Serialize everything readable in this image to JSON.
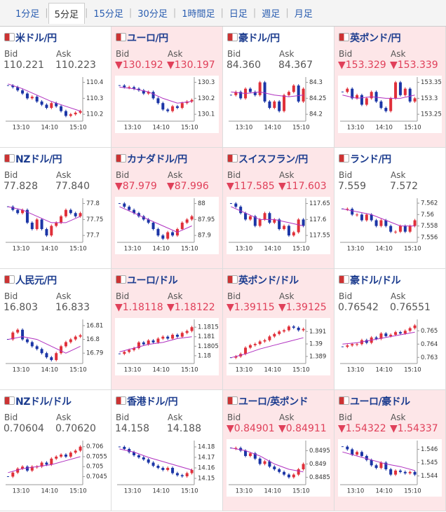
{
  "tabs": [
    "1分足",
    "5分足",
    "15分足",
    "30分足",
    "1時間足",
    "日足",
    "週足",
    "月足"
  ],
  "active_tab": 1,
  "tiles": [
    {
      "name": "米ドル/円",
      "bid_label": "Bid",
      "ask_label": "Ask",
      "bid": "110.221",
      "ask": "110.223",
      "down": false,
      "chart": {
        "ylim": [
          110.17,
          110.42
        ],
        "yticks": [
          110.4,
          110.3,
          110.2
        ],
        "xticks": [
          "13:10",
          "14:10",
          "15:10"
        ],
        "values": [
          110.38,
          110.37,
          110.35,
          110.33,
          110.3,
          110.31,
          110.28,
          110.26,
          110.24,
          110.27,
          110.25,
          110.22,
          110.19,
          110.2,
          110.21,
          110.22
        ],
        "ma": [
          110.39,
          110.36,
          110.32,
          110.28,
          110.25,
          110.22
        ]
      }
    },
    {
      "name": "ユーロ/円",
      "bid_label": "Bid",
      "ask_label": "Ask",
      "bid": "▼130.192",
      "ask": "▼130.197",
      "down": true,
      "chart": {
        "ylim": [
          130.07,
          130.32
        ],
        "yticks": [
          130.3,
          130.2,
          130.1
        ],
        "xticks": [
          "13:10",
          "14:10",
          "15:10"
        ],
        "values": [
          130.28,
          130.27,
          130.27,
          130.26,
          130.25,
          130.23,
          130.24,
          130.2,
          130.17,
          130.13,
          130.12,
          130.15,
          130.14,
          130.17,
          130.18,
          130.19
        ],
        "ma": [
          130.27,
          130.26,
          130.24,
          130.2,
          130.17,
          130.18
        ]
      }
    },
    {
      "name": "豪ドル/円",
      "bid_label": "Bid",
      "ask_label": "Ask",
      "bid": "84.360",
      "ask": "84.367",
      "down": false,
      "chart": {
        "ylim": [
          84.185,
          84.31
        ],
        "yticks": [
          84.3,
          84.25,
          84.2
        ],
        "xticks": [
          "13:10",
          "14:10",
          "15:10"
        ],
        "values": [
          84.26,
          84.27,
          84.25,
          84.28,
          84.27,
          84.26,
          84.3,
          84.24,
          84.22,
          84.24,
          84.21,
          84.26,
          84.27,
          84.29,
          84.24,
          84.28
        ],
        "ma": [
          84.27,
          84.265,
          84.27,
          84.26,
          84.255,
          84.26
        ]
      }
    },
    {
      "name": "英ポンド/円",
      "bid_label": "Bid",
      "ask_label": "Ask",
      "bid": "▼153.329",
      "ask": "▼153.339",
      "down": true,
      "chart": {
        "ylim": [
          153.235,
          153.36
        ],
        "yticks": [
          153.35,
          153.3,
          153.25
        ],
        "xticks": [
          "13:10",
          "14:10",
          "15:10"
        ],
        "values": [
          153.32,
          153.33,
          153.3,
          153.31,
          153.28,
          153.3,
          153.32,
          153.29,
          153.27,
          153.26,
          153.3,
          153.35,
          153.31,
          153.33,
          153.29,
          153.3
        ],
        "ma": [
          153.31,
          153.3,
          153.305,
          153.3,
          153.3,
          153.31
        ]
      }
    },
    {
      "name": "NZドル/円",
      "bid_label": "Bid",
      "ask_label": "Ask",
      "bid": "77.828",
      "ask": "77.840",
      "down": false,
      "chart": {
        "ylim": [
          77.685,
          77.81
        ],
        "yticks": [
          77.8,
          77.75,
          77.7
        ],
        "xticks": [
          "13:10",
          "14:10",
          "15:10"
        ],
        "values": [
          77.79,
          77.78,
          77.77,
          77.78,
          77.74,
          77.72,
          77.75,
          77.72,
          77.7,
          77.73,
          77.74,
          77.76,
          77.78,
          77.77,
          77.76,
          77.77
        ],
        "ma": [
          77.79,
          77.78,
          77.76,
          77.74,
          77.74,
          77.76
        ]
      }
    },
    {
      "name": "カナダドル/円",
      "bid_label": "Bid",
      "ask_label": "Ask",
      "bid": "▼87.979",
      "ask": "▼87.996",
      "down": true,
      "chart": {
        "ylim": [
          87.885,
          88.01
        ],
        "yticks": [
          88,
          87.95,
          87.9
        ],
        "xticks": [
          "13:10",
          "14:10",
          "15:10"
        ],
        "values": [
          88.0,
          87.99,
          87.98,
          87.97,
          87.96,
          87.95,
          87.94,
          87.92,
          87.9,
          87.89,
          87.91,
          87.9,
          87.92,
          87.94,
          87.95,
          87.96
        ],
        "ma": [
          87.99,
          87.97,
          87.95,
          87.93,
          87.91,
          87.93
        ]
      }
    },
    {
      "name": "スイスフラン/円",
      "bid_label": "Bid",
      "ask_label": "Ask",
      "bid": "▼117.585",
      "ask": "▼117.603",
      "down": true,
      "chart": {
        "ylim": [
          117.535,
          117.66
        ],
        "yticks": [
          117.65,
          117.6,
          117.55
        ],
        "xticks": [
          "13:10",
          "14:10",
          "15:10"
        ],
        "values": [
          117.65,
          117.64,
          117.62,
          117.6,
          117.61,
          117.58,
          117.6,
          117.62,
          117.59,
          117.6,
          117.57,
          117.58,
          117.55,
          117.56,
          117.6,
          117.58
        ],
        "ma": [
          117.64,
          117.62,
          117.6,
          117.6,
          117.59,
          117.58
        ]
      }
    },
    {
      "name": "ランド/円",
      "bid_label": "Bid",
      "ask_label": "Ask",
      "bid": "7.559",
      "ask": "7.572",
      "down": false,
      "chart": {
        "ylim": [
          7.5555,
          7.5625
        ],
        "yticks": [
          7.562,
          7.56,
          7.558,
          7.556
        ],
        "xticks": [
          "13:10",
          "14:10",
          "15:10"
        ],
        "values": [
          7.561,
          7.561,
          7.56,
          7.56,
          7.559,
          7.56,
          7.559,
          7.558,
          7.559,
          7.558,
          7.557,
          7.557,
          7.558,
          7.557,
          7.558,
          7.559
        ],
        "ma": [
          7.561,
          7.5605,
          7.56,
          7.559,
          7.558,
          7.558
        ]
      }
    },
    {
      "name": "人民元/円",
      "bid_label": "Bid",
      "ask_label": "Ask",
      "bid": "16.803",
      "ask": "16.833",
      "down": false,
      "chart": {
        "ylim": [
          16.784,
          16.813
        ],
        "yticks": [
          16.81,
          16.8,
          16.79
        ],
        "xticks": [
          "13:10",
          "14:10",
          "15:10"
        ],
        "values": [
          16.8,
          16.805,
          16.807,
          16.8,
          16.798,
          16.795,
          16.793,
          16.79,
          16.787,
          16.785,
          16.79,
          16.795,
          16.798,
          16.8,
          16.802,
          16.803
        ],
        "ma": [
          16.8,
          16.802,
          16.8,
          16.795,
          16.79,
          16.795
        ]
      }
    },
    {
      "name": "ユーロ/ドル",
      "bid_label": "Bid",
      "ask_label": "Ask",
      "bid": "▼1.18118",
      "ask": "▼1.18122",
      "down": true,
      "chart": {
        "ylim": [
          1.1797,
          1.1818
        ],
        "yticks": [
          1.1815,
          1.181,
          1.1805,
          1.18
        ],
        "xticks": [
          "13:10",
          "14:10",
          "15:10"
        ],
        "values": [
          1.1801,
          1.1802,
          1.1803,
          1.1804,
          1.1807,
          1.1806,
          1.1808,
          1.1807,
          1.1809,
          1.181,
          1.1809,
          1.1811,
          1.181,
          1.1812,
          1.1813,
          1.1815
        ],
        "ma": [
          1.1802,
          1.1804,
          1.1806,
          1.1807,
          1.1809,
          1.181
        ]
      }
    },
    {
      "name": "英ポンド/ドル",
      "bid_label": "Bid",
      "ask_label": "Ask",
      "bid": "▼1.39115",
      "ask": "▼1.39125",
      "down": true,
      "chart": {
        "ylim": [
          1.3886,
          1.3918
        ],
        "yticks": [
          1.391,
          1.39,
          1.389
        ],
        "xticks": [
          "13:10",
          "14:10",
          "15:10"
        ],
        "values": [
          1.3889,
          1.389,
          1.3892,
          1.3897,
          1.3899,
          1.39,
          1.3902,
          1.3903,
          1.3906,
          1.3908,
          1.391,
          1.3911,
          1.3914,
          1.3913,
          1.3911,
          1.3912
        ],
        "ma": [
          1.3889,
          1.3892,
          1.3896,
          1.3899,
          1.3902,
          1.3905
        ]
      }
    },
    {
      "name": "豪ドル/ドル",
      "bid_label": "Bid",
      "ask_label": "Ask",
      "bid": "0.76542",
      "ask": "0.76551",
      "down": false,
      "chart": {
        "ylim": [
          0.7627,
          0.7657
        ],
        "yticks": [
          0.765,
          0.764,
          0.763
        ],
        "xticks": [
          "13:10",
          "14:10",
          "15:10"
        ],
        "values": [
          0.7638,
          0.7639,
          0.764,
          0.764,
          0.7643,
          0.7641,
          0.7645,
          0.7644,
          0.7648,
          0.7646,
          0.7647,
          0.7649,
          0.7648,
          0.765,
          0.7652,
          0.7654
        ],
        "ma": [
          0.764,
          0.7641,
          0.7643,
          0.7645,
          0.7647,
          0.7649
        ]
      }
    },
    {
      "name": "NZドル/ドル",
      "bid_label": "Bid",
      "ask_label": "Ask",
      "bid": "0.70604",
      "ask": "0.70620",
      "down": false,
      "chart": {
        "ylim": [
          0.7042,
          0.7062
        ],
        "yticks": [
          0.706,
          0.7055,
          0.705,
          0.7045
        ],
        "xticks": [
          "13:10",
          "14:10",
          "15:10"
        ],
        "values": [
          0.7045,
          0.7047,
          0.7049,
          0.705,
          0.7048,
          0.705,
          0.705,
          0.7052,
          0.7051,
          0.7054,
          0.7055,
          0.7056,
          0.7055,
          0.7057,
          0.7058,
          0.706
        ],
        "ma": [
          0.7047,
          0.7049,
          0.705,
          0.7051,
          0.7053,
          0.7055
        ]
      }
    },
    {
      "name": "香港ドル/円",
      "bid_label": "Bid",
      "ask_label": "Ask",
      "bid": "14.158",
      "ask": "14.188",
      "down": false,
      "chart": {
        "ylim": [
          14.146,
          14.184
        ],
        "yticks": [
          14.18,
          14.17,
          14.16,
          14.15
        ],
        "xticks": [
          "13:10",
          "14:10",
          "15:10"
        ],
        "values": [
          14.18,
          14.178,
          14.175,
          14.172,
          14.17,
          14.168,
          14.165,
          14.162,
          14.16,
          14.158,
          14.16,
          14.155,
          14.153,
          14.152,
          14.155,
          14.158
        ],
        "ma": [
          14.178,
          14.175,
          14.17,
          14.166,
          14.162,
          14.158
        ]
      }
    },
    {
      "name": "ユーロ/英ポンド",
      "bid_label": "Bid",
      "ask_label": "Ask",
      "bid": "▼0.84901",
      "ask": "▼0.84911",
      "down": true,
      "chart": {
        "ylim": [
          0.8483,
          0.8498
        ],
        "yticks": [
          0.8495,
          0.849,
          0.8485
        ],
        "xticks": [
          "13:10",
          "14:10",
          "15:10"
        ],
        "values": [
          0.8496,
          0.8496,
          0.8495,
          0.8493,
          0.8494,
          0.8492,
          0.849,
          0.8491,
          0.8489,
          0.8488,
          0.8487,
          0.8486,
          0.8485,
          0.8486,
          0.8488,
          0.849
        ],
        "ma": [
          0.8496,
          0.8495,
          0.8493,
          0.849,
          0.8488,
          0.8487
        ]
      }
    },
    {
      "name": "ユーロ/豪ドル",
      "bid_label": "Bid",
      "ask_label": "Ask",
      "bid": "▼1.54322",
      "ask": "▼1.54337",
      "down": true,
      "chart": {
        "ylim": [
          1.5435,
          1.5465
        ],
        "yticks": [
          1.546,
          1.545,
          1.544
        ],
        "xticks": [
          "13:10",
          "14:10",
          "15:10"
        ],
        "values": [
          1.5462,
          1.546,
          1.5456,
          1.5458,
          1.5455,
          1.5452,
          1.5448,
          1.5446,
          1.545,
          1.5445,
          1.5441,
          1.5444,
          1.5443,
          1.5442,
          1.5443,
          1.5441
        ],
        "ma": [
          1.5458,
          1.5455,
          1.5452,
          1.5449,
          1.5447,
          1.5444
        ]
      }
    }
  ]
}
